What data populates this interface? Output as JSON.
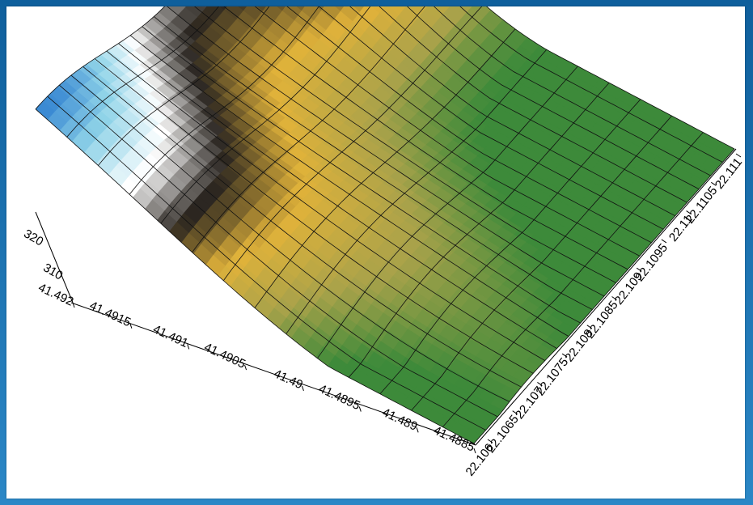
{
  "chart_data": {
    "type": "surface",
    "grid": true,
    "legend": "none",
    "x_axis": {
      "ticks": [
        "41.492",
        "41.4915",
        "41.491",
        "41.4905",
        "41.49",
        "41.4895",
        "41.489",
        "41.4885"
      ],
      "range": [
        41.4885,
        41.492
      ]
    },
    "y_axis": {
      "ticks": [
        "22.106",
        "22.1065",
        "22.107",
        "22.1075",
        "22.108",
        "22.1085",
        "22.109",
        "22.1095",
        "22.11",
        "22.1105",
        "22.111"
      ],
      "range": [
        22.106,
        22.111
      ]
    },
    "z_axis": {
      "ticks": [
        "320",
        "310"
      ]
    },
    "colormap": [
      "#3d8a3a",
      "#a9a24a",
      "#e0b23a",
      "#2a2520",
      "#ffffff",
      "#8fd3e8",
      "#2f80d0"
    ]
  }
}
